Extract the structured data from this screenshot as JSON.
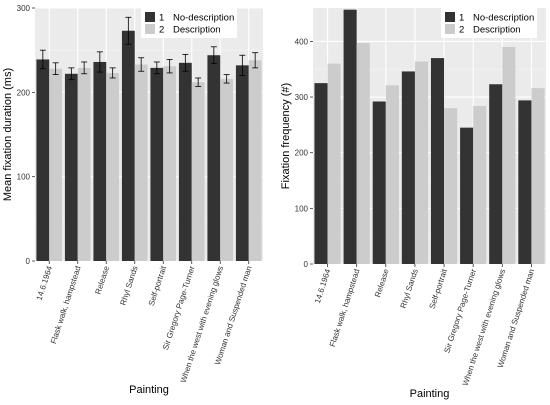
{
  "chart_data": [
    {
      "type": "bar",
      "xlabel": "Painting",
      "ylabel": "Mean fixation duration (ms)",
      "ylim": [
        0,
        300
      ],
      "yticks": [
        0,
        100,
        200,
        300
      ],
      "grid": true,
      "legend_position": "top-right",
      "error_bars": true,
      "categories": [
        "14.6.1964",
        "Flask walk, hampstead",
        "Release",
        "Rhyl Sands",
        "Self-portrait",
        "Sir Gregory Page-Turner",
        "When the west with evening glows",
        "Woman and Suspended man"
      ],
      "series": [
        {
          "name": "No-description",
          "legend_key": "1",
          "color": "#333333",
          "values": [
            239,
            222,
            236,
            273,
            229,
            235,
            244,
            232
          ],
          "errors": [
            11,
            7,
            12,
            16,
            7,
            10,
            10,
            12
          ]
        },
        {
          "name": "Description",
          "legend_key": "2",
          "color": "#cccccc",
          "values": [
            228,
            229,
            223,
            233,
            231,
            212,
            216,
            238
          ],
          "errors": [
            7,
            7,
            6,
            8,
            8,
            5,
            5,
            9
          ]
        }
      ]
    },
    {
      "type": "bar",
      "xlabel": "Painting",
      "ylabel": "Fixation frequency (#)",
      "ylim": [
        0,
        460
      ],
      "yticks": [
        0,
        100,
        200,
        300,
        400
      ],
      "grid": true,
      "legend_position": "top-right",
      "categories": [
        "14.6.1964",
        "Flask walk, hampstead",
        "Release",
        "Rhyl Sands",
        "Self-portrait",
        "Sir Gregory Page-Turner",
        "When the west with evening glows",
        "Woman and Suspended man"
      ],
      "series": [
        {
          "name": "No-description",
          "legend_key": "1",
          "color": "#333333",
          "values": [
            325,
            457,
            292,
            346,
            370,
            245,
            323,
            294
          ]
        },
        {
          "name": "Description",
          "legend_key": "2",
          "color": "#cccccc",
          "values": [
            360,
            397,
            321,
            364,
            280,
            284,
            390,
            316
          ]
        }
      ]
    }
  ]
}
